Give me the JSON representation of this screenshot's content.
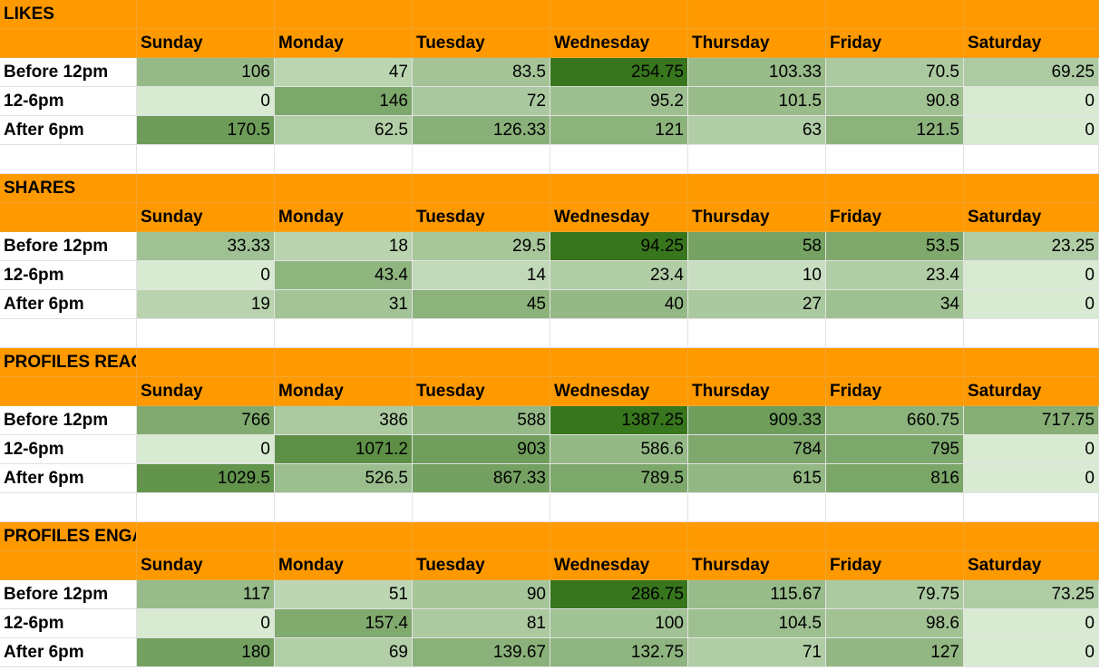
{
  "days": [
    "Sunday",
    "Monday",
    "Tuesday",
    "Wednesday",
    "Thursday",
    "Friday",
    "Saturday"
  ],
  "row_labels": [
    "Before 12pm",
    "12-6pm",
    "After 6pm"
  ],
  "colors": {
    "header_orange": "#ff9900",
    "heat_low": "#d9ead3",
    "heat_high": "#38761d"
  },
  "sections": [
    {
      "title": "LIKES",
      "rows": [
        {
          "label": "Before 12pm",
          "values": [
            "106",
            "47",
            "83.5",
            "254.75",
            "103.33",
            "70.5",
            "69.25"
          ]
        },
        {
          "label": "12-6pm",
          "values": [
            "0",
            "146",
            "72",
            "95.2",
            "101.5",
            "90.8",
            "0"
          ]
        },
        {
          "label": "After 6pm",
          "values": [
            "170.5",
            "62.5",
            "126.33",
            "121",
            "63",
            "121.5",
            "0"
          ]
        }
      ]
    },
    {
      "title": "SHARES",
      "rows": [
        {
          "label": "Before 12pm",
          "values": [
            "33.33",
            "18",
            "29.5",
            "94.25",
            "58",
            "53.5",
            "23.25"
          ]
        },
        {
          "label": "12-6pm",
          "values": [
            "0",
            "43.4",
            "14",
            "23.4",
            "10",
            "23.4",
            "0"
          ]
        },
        {
          "label": "After 6pm",
          "values": [
            "19",
            "31",
            "45",
            "40",
            "27",
            "34",
            "0"
          ]
        }
      ]
    },
    {
      "title": "PROFILES REACHED",
      "rows": [
        {
          "label": "Before 12pm",
          "values": [
            "766",
            "386",
            "588",
            "1387.25",
            "909.33",
            "660.75",
            "717.75"
          ]
        },
        {
          "label": "12-6pm",
          "values": [
            "0",
            "1071.2",
            "903",
            "586.6",
            "784",
            "795",
            "0"
          ]
        },
        {
          "label": "After 6pm",
          "values": [
            "1029.5",
            "526.5",
            "867.33",
            "789.5",
            "615",
            "816",
            "0"
          ]
        }
      ]
    },
    {
      "title": "PROFILES ENGAGED",
      "rows": [
        {
          "label": "Before 12pm",
          "values": [
            "117",
            "51",
            "90",
            "286.75",
            "115.67",
            "79.75",
            "73.25"
          ]
        },
        {
          "label": "12-6pm",
          "values": [
            "0",
            "157.4",
            "81",
            "100",
            "104.5",
            "98.6",
            "0"
          ]
        },
        {
          "label": "After 6pm",
          "values": [
            "180",
            "69",
            "139.67",
            "132.75",
            "71",
            "127",
            "0"
          ]
        }
      ]
    }
  ]
}
